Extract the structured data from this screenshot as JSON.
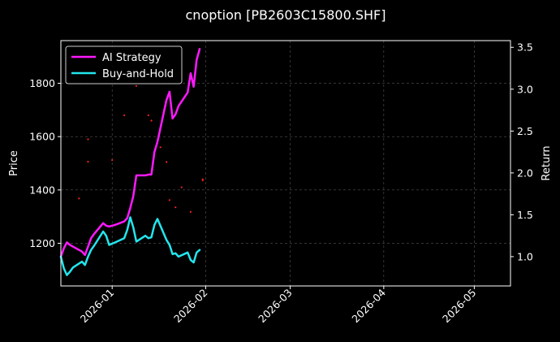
{
  "chart_data": {
    "type": "line",
    "title": "cnoption [PB2603C15800.SHF]",
    "ylabel": "Price",
    "y2label": "Return",
    "x_range": [
      "2025-12-15",
      "2026-05-13"
    ],
    "ylim": [
      1040,
      1960
    ],
    "y2lim": [
      0.65,
      3.58
    ],
    "grid": true,
    "legend_placement": "top-left",
    "x_ticks": [
      {
        "date": "2026-01-01",
        "label": "2026-01"
      },
      {
        "date": "2026-02-01",
        "label": "2026-02"
      },
      {
        "date": "2026-03-01",
        "label": "2026-03"
      },
      {
        "date": "2026-04-01",
        "label": "2026-04"
      },
      {
        "date": "2026-05-01",
        "label": "2026-05"
      }
    ],
    "y_ticks": [
      1200,
      1400,
      1600,
      1800
    ],
    "y2_ticks": [
      1.0,
      1.5,
      2.0,
      2.5,
      3.0,
      3.5
    ],
    "colors": {
      "background": "#000000",
      "ai_strategy": "#ff19ff",
      "buy_and_hold": "#22e6ee",
      "trade_marks": "#ff2222",
      "grid": "#555555"
    },
    "series": [
      {
        "name": "AI Strategy",
        "axis": "right",
        "color": "#ff19ff",
        "points": [
          [
            "2025-12-15",
            1.0
          ],
          [
            "2025-12-16",
            1.1
          ],
          [
            "2025-12-17",
            1.17
          ],
          [
            "2025-12-18",
            1.14
          ],
          [
            "2025-12-19",
            1.12
          ],
          [
            "2025-12-22",
            1.06
          ],
          [
            "2025-12-23",
            1.02
          ],
          [
            "2025-12-24",
            1.12
          ],
          [
            "2025-12-25",
            1.22
          ],
          [
            "2025-12-26",
            1.27
          ],
          [
            "2025-12-29",
            1.4
          ],
          [
            "2025-12-30",
            1.37
          ],
          [
            "2025-12-31",
            1.36
          ],
          [
            "2026-01-02",
            1.38
          ],
          [
            "2026-01-05",
            1.42
          ],
          [
            "2026-01-06",
            1.46
          ],
          [
            "2026-01-07",
            1.58
          ],
          [
            "2026-01-08",
            1.72
          ],
          [
            "2026-01-09",
            1.97
          ],
          [
            "2026-01-12",
            1.97
          ],
          [
            "2026-01-13",
            1.98
          ],
          [
            "2026-01-14",
            1.98
          ],
          [
            "2026-01-15",
            2.25
          ],
          [
            "2026-01-16",
            2.37
          ],
          [
            "2026-01-19",
            2.87
          ],
          [
            "2026-01-20",
            2.97
          ],
          [
            "2026-01-21",
            2.65
          ],
          [
            "2026-01-22",
            2.7
          ],
          [
            "2026-01-23",
            2.8
          ],
          [
            "2026-01-26",
            2.96
          ],
          [
            "2026-01-27",
            3.19
          ],
          [
            "2026-01-28",
            3.03
          ],
          [
            "2026-01-29",
            3.35
          ],
          [
            "2026-01-30",
            3.48
          ]
        ]
      },
      {
        "name": "Buy-and-Hold",
        "axis": "right",
        "color": "#22e6ee",
        "points": [
          [
            "2025-12-15",
            1.0
          ],
          [
            "2025-12-16",
            0.86
          ],
          [
            "2025-12-17",
            0.78
          ],
          [
            "2025-12-18",
            0.82
          ],
          [
            "2025-12-19",
            0.87
          ],
          [
            "2025-12-22",
            0.94
          ],
          [
            "2025-12-23",
            0.9
          ],
          [
            "2025-12-24",
            1.0
          ],
          [
            "2025-12-25",
            1.08
          ],
          [
            "2025-12-26",
            1.13
          ],
          [
            "2025-12-29",
            1.3
          ],
          [
            "2025-12-30",
            1.25
          ],
          [
            "2025-12-31",
            1.14
          ],
          [
            "2026-01-02",
            1.17
          ],
          [
            "2026-01-05",
            1.22
          ],
          [
            "2026-01-06",
            1.32
          ],
          [
            "2026-01-07",
            1.47
          ],
          [
            "2026-01-08",
            1.35
          ],
          [
            "2026-01-09",
            1.18
          ],
          [
            "2026-01-12",
            1.25
          ],
          [
            "2026-01-13",
            1.22
          ],
          [
            "2026-01-14",
            1.23
          ],
          [
            "2026-01-15",
            1.38
          ],
          [
            "2026-01-16",
            1.45
          ],
          [
            "2026-01-19",
            1.2
          ],
          [
            "2026-01-20",
            1.14
          ],
          [
            "2026-01-21",
            1.03
          ],
          [
            "2026-01-22",
            1.04
          ],
          [
            "2026-01-23",
            1.0
          ],
          [
            "2026-01-26",
            1.05
          ],
          [
            "2026-01-27",
            0.96
          ],
          [
            "2026-01-28",
            0.93
          ],
          [
            "2026-01-29",
            1.05
          ],
          [
            "2026-01-30",
            1.08
          ]
        ]
      }
    ],
    "trade_marks": {
      "axis": "left",
      "color": "#ff2222",
      "points": [
        [
          "2025-12-21",
          1368
        ],
        [
          "2025-12-24",
          1590
        ],
        [
          "2025-12-24",
          1506
        ],
        [
          "2026-01-01",
          1512
        ],
        [
          "2026-01-05",
          1680
        ],
        [
          "2026-01-09",
          1790
        ],
        [
          "2026-01-13",
          1680
        ],
        [
          "2026-01-14",
          1660
        ],
        [
          "2026-01-17",
          1560
        ],
        [
          "2026-01-19",
          1505
        ],
        [
          "2026-01-20",
          1362
        ],
        [
          "2026-01-22",
          1335
        ],
        [
          "2026-01-24",
          1410
        ],
        [
          "2026-01-27",
          1318
        ],
        [
          "2026-01-31",
          1440
        ],
        [
          "2026-01-31",
          1436
        ]
      ]
    }
  }
}
